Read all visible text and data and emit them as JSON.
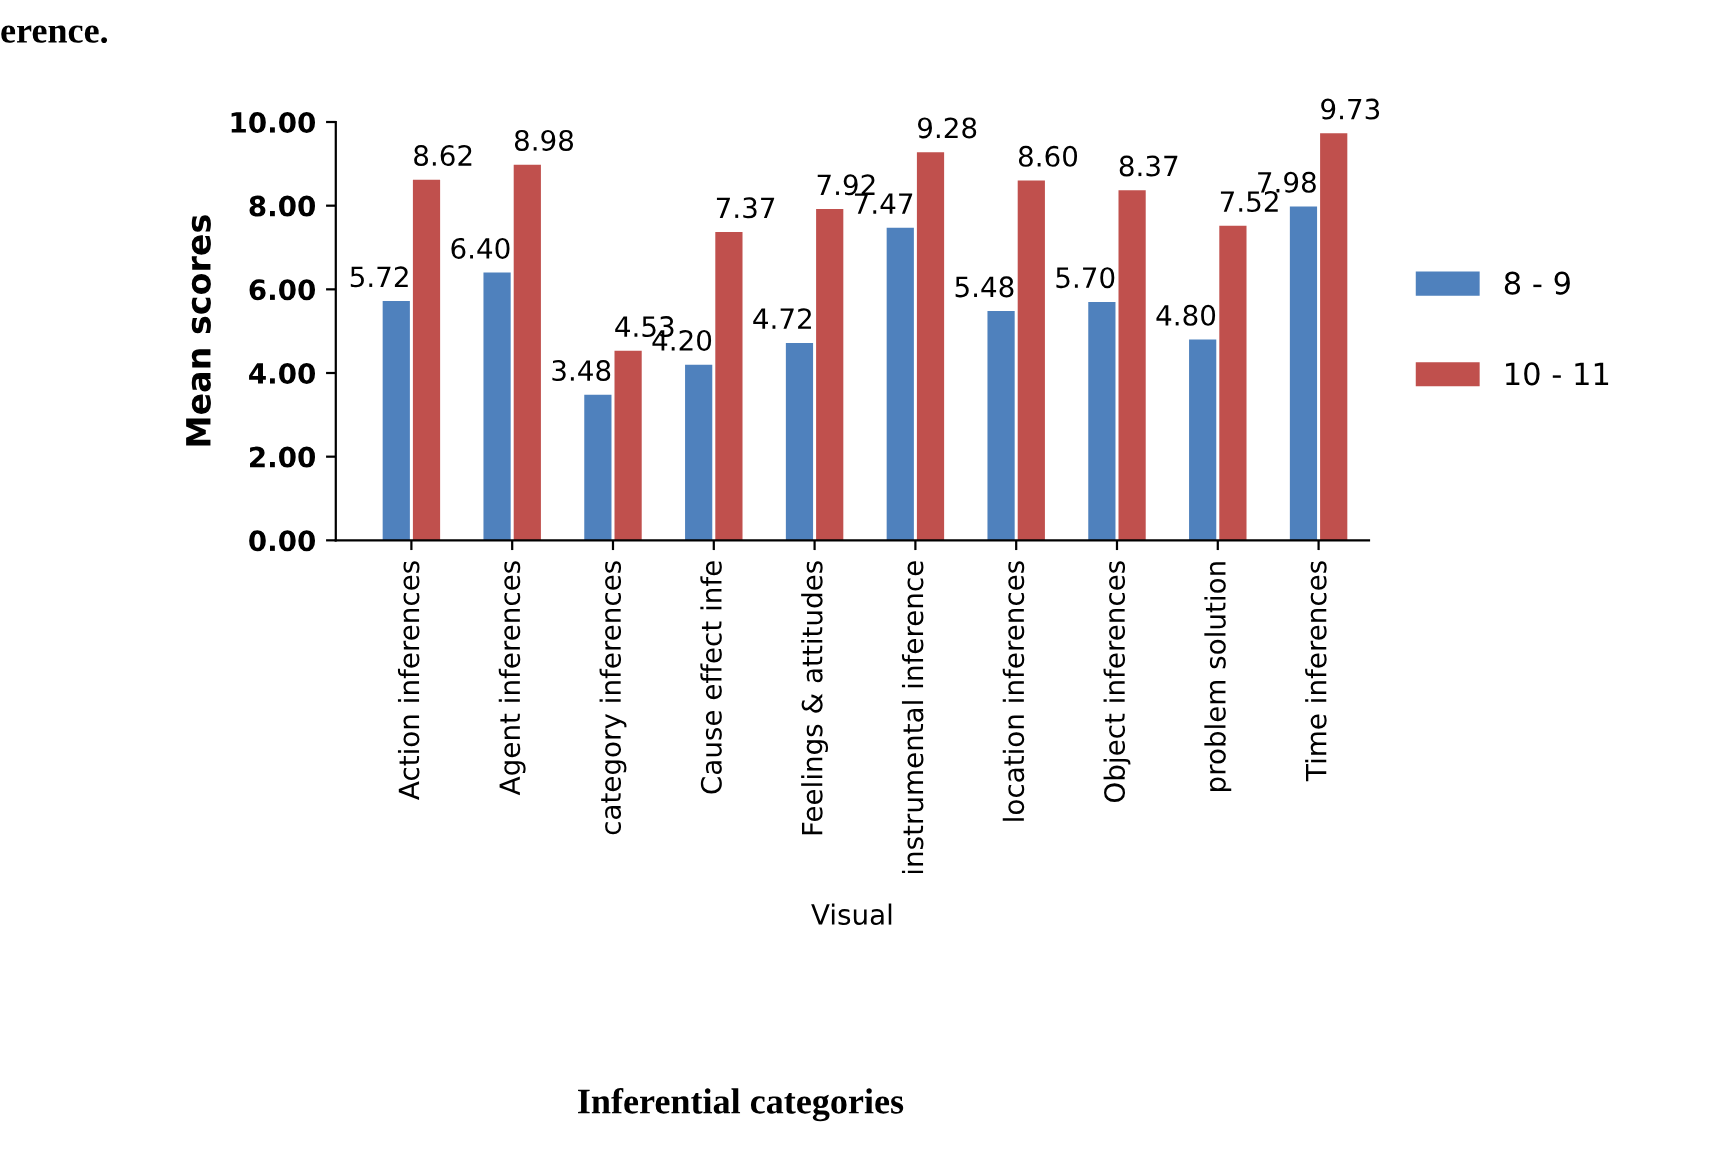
{
  "chart_data": {
    "type": "bar",
    "ylabel": "Mean scores",
    "xlabel": "Visual",
    "categories": [
      "Action inferences",
      "Agent inferences",
      "category inferences",
      "Cause effect infe",
      "Feelings & attitudes",
      "instrumental inference",
      "location inferences",
      "Object inferences",
      "problem solution",
      "Time inferences"
    ],
    "series": [
      {
        "name": "8 - 9",
        "color": "#4f81bd",
        "values": [
          5.72,
          6.4,
          3.48,
          4.2,
          4.72,
          7.47,
          5.48,
          5.7,
          4.8,
          7.98
        ],
        "value_labels": [
          "5.72",
          "6.40",
          "3.48",
          "4.20",
          "4.72",
          "7.47",
          "5.48",
          "5.70",
          "4.80",
          "7.98"
        ]
      },
      {
        "name": "10 - 11",
        "color": "#c0504d",
        "values": [
          8.62,
          8.98,
          4.53,
          7.37,
          7.92,
          9.28,
          8.6,
          8.37,
          7.52,
          9.73
        ],
        "value_labels": [
          "8.62",
          "8.98",
          "4.53",
          "7.37",
          "7.92",
          "9.28",
          "8.60",
          "8.37",
          "7.52",
          "9.73"
        ]
      }
    ],
    "ylim": [
      0,
      10
    ],
    "yticks": [
      {
        "value": 0,
        "label": "0.00"
      },
      {
        "value": 2,
        "label": "2.00"
      },
      {
        "value": 4,
        "label": "4.00"
      },
      {
        "value": 6,
        "label": "6.00"
      },
      {
        "value": 8,
        "label": "8.00"
      },
      {
        "value": 10,
        "label": "10.00"
      }
    ],
    "grid": false,
    "legend": "right",
    "annotations": [
      "erence.",
      "Inferential categories"
    ]
  }
}
